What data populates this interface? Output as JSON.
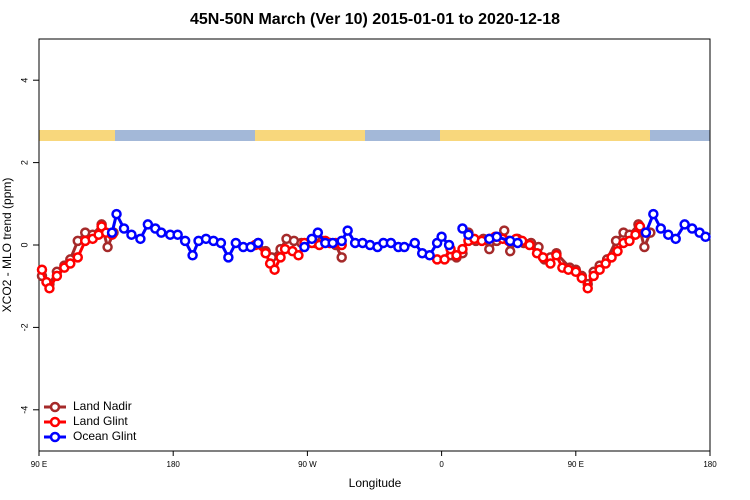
{
  "chart_data": {
    "type": "line",
    "title": "45N-50N March (Ver 10)   2015-01-01 to 2020-12-18",
    "x_label": "Longitude",
    "y_label": "XCO2 - MLO trend (ppm)",
    "xlim": [
      90,
      540
    ],
    "ylim": [
      -5,
      5
    ],
    "xticks": [
      {
        "value": 90,
        "label": "90 E"
      },
      180,
      {
        "value": 270,
        "label": "90 W"
      },
      {
        "value": 360,
        "label": "0"
      },
      {
        "value": 450,
        "label": "90 E"
      },
      {
        "value": 540,
        "label": "180"
      }
    ],
    "yticks": [
      -4,
      -2,
      0,
      2,
      4
    ],
    "legend": "bottom-left",
    "series": [
      {
        "name": "Land Nadir",
        "color": "#a52a2a",
        "x": [
          92,
          97,
          102,
          107,
          111,
          116,
          121,
          126,
          132,
          136,
          140,
          null,
          237,
          242,
          246,
          252,
          256,
          261,
          266,
          270,
          275,
          280,
          285,
          289,
          293,
          null,
          366,
          370,
          374,
          378,
          383,
          388,
          392,
          397,
          402,
          406,
          411,
          415,
          420,
          425,
          429,
          433,
          437,
          446,
          450,
          454,
          458,
          462,
          466,
          471,
          477,
          482,
          486,
          492,
          496,
          500
        ],
        "values": [
          -0.75,
          -0.95,
          -0.65,
          -0.5,
          -0.35,
          0.1,
          0.3,
          0.25,
          0.5,
          -0.05,
          0.3,
          null,
          0.05,
          -0.15,
          -0.3,
          -0.1,
          0.15,
          0.1,
          0.05,
          0.05,
          0.05,
          0.1,
          0.05,
          0.0,
          -0.3,
          null,
          -0.25,
          -0.3,
          -0.2,
          0.3,
          0.1,
          0.15,
          -0.1,
          0.1,
          0.35,
          -0.15,
          0.15,
          0.05,
          0.05,
          -0.05,
          -0.35,
          -0.3,
          -0.2,
          -0.55,
          -0.6,
          -0.75,
          -0.95,
          -0.65,
          -0.5,
          -0.35,
          0.1,
          0.3,
          0.25,
          0.5,
          -0.05,
          0.3
        ]
      },
      {
        "name": "Land Glint",
        "color": "#ff0000",
        "x": [
          92,
          95,
          97,
          102,
          107,
          111,
          116,
          121,
          126,
          130,
          132,
          135,
          139,
          null,
          235,
          242,
          245,
          248,
          252,
          255,
          260,
          264,
          268,
          273,
          278,
          282,
          285,
          289,
          293,
          null,
          357,
          362,
          366,
          370,
          374,
          378,
          382,
          387,
          392,
          396,
          401,
          405,
          410,
          414,
          419,
          424,
          428,
          433,
          437,
          441,
          445,
          450,
          454,
          458,
          462,
          466,
          470,
          474,
          478,
          482,
          486,
          490,
          493,
          497
        ],
        "values": [
          -0.6,
          -0.9,
          -1.05,
          -0.75,
          -0.55,
          -0.45,
          -0.3,
          0.1,
          0.15,
          0.25,
          0.45,
          0.3,
          0.25,
          null,
          0.0,
          -0.2,
          -0.45,
          -0.6,
          -0.3,
          -0.1,
          -0.15,
          -0.25,
          0.05,
          0.05,
          0.0,
          0.1,
          0.05,
          0.05,
          0.0,
          null,
          -0.35,
          -0.35,
          -0.1,
          -0.25,
          -0.1,
          0.1,
          0.15,
          0.1,
          0.15,
          0.2,
          0.15,
          0.1,
          0.15,
          0.1,
          0.0,
          -0.2,
          -0.3,
          -0.45,
          -0.25,
          -0.55,
          -0.6,
          -0.65,
          -0.8,
          -1.05,
          -0.75,
          -0.6,
          -0.45,
          -0.3,
          -0.15,
          0.05,
          0.1,
          0.25,
          0.45,
          0.3
        ]
      },
      {
        "name": "Ocean Glint",
        "color": "#0000ff",
        "x": [
          139,
          142,
          147,
          152,
          158,
          163,
          168,
          172,
          178,
          183,
          188,
          193,
          197,
          202,
          207,
          212,
          217,
          222,
          227,
          232,
          237,
          null,
          268,
          273,
          277,
          282,
          287,
          293,
          297,
          302,
          307,
          312,
          317,
          321,
          326,
          331,
          335,
          342,
          347,
          352,
          357,
          360,
          365,
          null,
          374,
          378,
          null,
          392,
          397,
          406,
          411,
          null,
          497,
          502,
          507,
          512,
          517,
          523,
          528,
          533,
          537
        ],
        "values": [
          0.3,
          0.75,
          0.4,
          0.25,
          0.15,
          0.5,
          0.4,
          0.3,
          0.25,
          0.25,
          0.1,
          -0.25,
          0.1,
          0.15,
          0.1,
          0.05,
          -0.3,
          0.05,
          -0.05,
          -0.05,
          0.05,
          null,
          -0.05,
          0.15,
          0.3,
          0.05,
          0.05,
          0.1,
          0.35,
          0.05,
          0.05,
          0.0,
          -0.05,
          0.05,
          0.05,
          -0.05,
          -0.05,
          0.05,
          -0.2,
          -0.25,
          0.05,
          0.2,
          0.0,
          null,
          0.4,
          0.25,
          null,
          0.15,
          0.2,
          0.1,
          0.05,
          null,
          0.3,
          0.75,
          0.4,
          0.25,
          0.15,
          0.5,
          0.4,
          0.3,
          0.2
        ]
      }
    ]
  }
}
